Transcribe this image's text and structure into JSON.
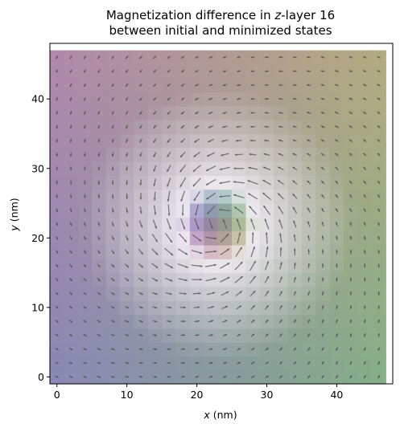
{
  "chart_data": {
    "type": "heatmap",
    "title_line1_prefix": "Magnetization difference in ",
    "title_line1_var": "z",
    "title_line1_suffix": "-layer 16",
    "title_line2": "between initial and minimized states",
    "xlabel_var": "x",
    "xlabel_unit": " (nm)",
    "ylabel_var": "y",
    "ylabel_unit": " (nm)",
    "xlim": [
      -1,
      48
    ],
    "ylim": [
      -1,
      48
    ],
    "x_ticks": [
      0,
      10,
      20,
      30,
      40
    ],
    "y_ticks": [
      0,
      10,
      20,
      30,
      40
    ],
    "x_tick_labels": [
      "0",
      "10",
      "20",
      "30",
      "40"
    ],
    "y_tick_labels": [
      "0",
      "10",
      "20",
      "30",
      "40"
    ],
    "grid": false,
    "cell_size_nm": 2,
    "grid_cells": [
      24,
      24
    ],
    "field": {
      "description": "skyrmion-like texture centered near (23, 22) nm",
      "center": [
        23,
        22
      ],
      "core_radius_nm": 5,
      "decay_nm": 14
    },
    "arrow_color": "#555555",
    "arrow_opacity": 0.75,
    "corner_colors": {
      "top_left": "#b08aaa",
      "top_right": "#b2aa80",
      "bottom_left": "#8a88b4",
      "bottom_right": "#86ae88",
      "core_top_left": "#5e6ad0",
      "core_top_right": "#5ec070",
      "core_bottom_left": "#c060c0",
      "core_bottom_right": "#c8b050"
    }
  }
}
